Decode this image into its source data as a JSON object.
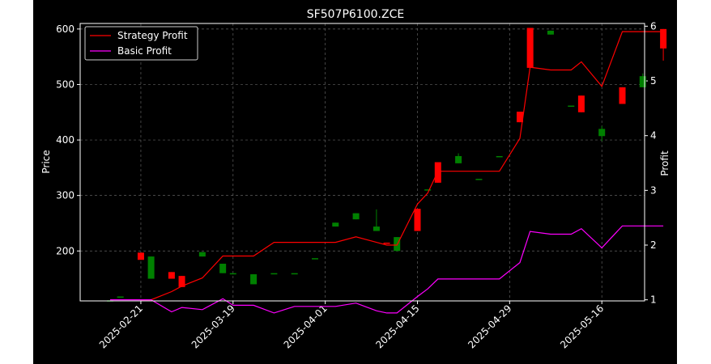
{
  "chart_data": {
    "type": "candlestick",
    "title": "SF507P6100.ZCE",
    "xlabel": "",
    "ylabel": "Price",
    "y2label": "Profit",
    "ylim": [
      110,
      610
    ],
    "y2lim": [
      0.98,
      6.05
    ],
    "yticks": [
      200,
      300,
      400,
      500,
      600
    ],
    "y2ticks": [
      1,
      2,
      3,
      4,
      5,
      6
    ],
    "grid": true,
    "legend_position": "top-left",
    "x_tick_labels": [
      "2025-02-21",
      "2025-03-19",
      "2025-04-01",
      "2025-04-15",
      "2025-04-29",
      "2025-05-16"
    ],
    "x_tick_index": [
      3,
      12,
      21,
      30,
      39,
      48
    ],
    "n_bars": 53,
    "colors": {
      "up": "#008000",
      "down": "#ff0000",
      "strategy": "#ff0000",
      "basic": "#ff00ff",
      "grid": "#808080"
    },
    "candles": [
      {
        "i": 0,
        "o": 111,
        "h": 111,
        "l": 111,
        "c": 111
      },
      {
        "i": 1,
        "o": 118,
        "h": 118,
        "l": 118,
        "c": 118
      },
      {
        "i": 3,
        "o": 197,
        "h": 197,
        "l": 184,
        "c": 184
      },
      {
        "i": 4,
        "o": 150,
        "h": 190,
        "l": 150,
        "c": 190
      },
      {
        "i": 6,
        "o": 162,
        "h": 162,
        "l": 150,
        "c": 150
      },
      {
        "i": 7,
        "o": 155,
        "h": 155,
        "l": 135,
        "c": 135
      },
      {
        "i": 9,
        "o": 190,
        "h": 198,
        "l": 190,
        "c": 198
      },
      {
        "i": 11,
        "o": 160,
        "h": 177,
        "l": 160,
        "c": 177
      },
      {
        "i": 12,
        "o": 160,
        "h": 160,
        "l": 160,
        "c": 160
      },
      {
        "i": 14,
        "o": 140,
        "h": 158,
        "l": 140,
        "c": 158
      },
      {
        "i": 16,
        "o": 160,
        "h": 160,
        "l": 160,
        "c": 160
      },
      {
        "i": 18,
        "o": 160,
        "h": 160,
        "l": 160,
        "c": 160
      },
      {
        "i": 20,
        "o": 187,
        "h": 187,
        "l": 187,
        "c": 187
      },
      {
        "i": 22,
        "o": 244,
        "h": 251,
        "l": 244,
        "c": 251
      },
      {
        "i": 24,
        "o": 257,
        "h": 268,
        "l": 257,
        "c": 268
      },
      {
        "i": 26,
        "o": 236,
        "h": 275,
        "l": 236,
        "c": 244
      },
      {
        "i": 27,
        "o": 215,
        "h": 215,
        "l": 213,
        "c": 213
      },
      {
        "i": 28,
        "o": 200,
        "h": 225,
        "l": 200,
        "c": 225
      },
      {
        "i": 30,
        "o": 276,
        "h": 276,
        "l": 236,
        "c": 236
      },
      {
        "i": 31,
        "o": 311,
        "h": 311,
        "l": 311,
        "c": 311
      },
      {
        "i": 32,
        "o": 360,
        "h": 360,
        "l": 323,
        "c": 323
      },
      {
        "i": 34,
        "o": 358,
        "h": 376,
        "l": 358,
        "c": 371
      },
      {
        "i": 36,
        "o": 330,
        "h": 330,
        "l": 330,
        "c": 330
      },
      {
        "i": 38,
        "o": 371,
        "h": 371,
        "l": 371,
        "c": 371
      },
      {
        "i": 40,
        "o": 451,
        "h": 451,
        "l": 432,
        "c": 432
      },
      {
        "i": 41,
        "o": 602,
        "h": 602,
        "l": 530,
        "c": 530
      },
      {
        "i": 43,
        "o": 590,
        "h": 597,
        "l": 590,
        "c": 597
      },
      {
        "i": 45,
        "o": 462,
        "h": 462,
        "l": 462,
        "c": 462
      },
      {
        "i": 46,
        "o": 480,
        "h": 480,
        "l": 450,
        "c": 450
      },
      {
        "i": 48,
        "o": 407,
        "h": 425,
        "l": 398,
        "c": 420
      },
      {
        "i": 50,
        "o": 495,
        "h": 495,
        "l": 465,
        "c": 465
      },
      {
        "i": 52,
        "o": 495,
        "h": 520,
        "l": 495,
        "c": 515
      },
      {
        "i": 54,
        "o": 600,
        "h": 600,
        "l": 543,
        "c": 565
      }
    ],
    "series": [
      {
        "name": "Strategy Profit",
        "x": [
          3,
          4,
          6,
          7,
          9,
          11,
          12,
          14,
          16,
          18,
          20,
          22,
          24,
          26,
          27,
          28,
          30,
          31,
          32,
          34,
          36,
          38,
          40,
          41,
          43,
          45,
          46,
          48,
          50,
          52,
          54
        ],
        "values": [
          1.0,
          1.0,
          1.15,
          1.25,
          1.4,
          1.8,
          1.8,
          1.8,
          2.05,
          2.05,
          2.05,
          2.05,
          2.15,
          2.05,
          2.0,
          2.0,
          2.75,
          2.95,
          3.35,
          3.35,
          3.35,
          3.35,
          3.95,
          5.25,
          5.2,
          5.2,
          5.35,
          4.9,
          5.9,
          5.9,
          5.9
        ]
      },
      {
        "name": "Basic Profit",
        "x": [
          0,
          1,
          3,
          4,
          6,
          7,
          9,
          11,
          12,
          14,
          16,
          18,
          20,
          22,
          24,
          26,
          27,
          28,
          30,
          31,
          32,
          34,
          36,
          38,
          40,
          41,
          43,
          45,
          46,
          48,
          50,
          52,
          54
        ],
        "values": [
          1.0,
          1.0,
          1.0,
          1.0,
          0.78,
          0.86,
          0.82,
          1.02,
          0.9,
          0.9,
          0.76,
          0.88,
          0.88,
          0.88,
          0.94,
          0.8,
          0.76,
          0.76,
          1.06,
          1.2,
          1.38,
          1.38,
          1.38,
          1.38,
          1.68,
          2.25,
          2.2,
          2.2,
          2.3,
          1.95,
          2.35,
          2.35,
          2.35
        ]
      }
    ]
  }
}
